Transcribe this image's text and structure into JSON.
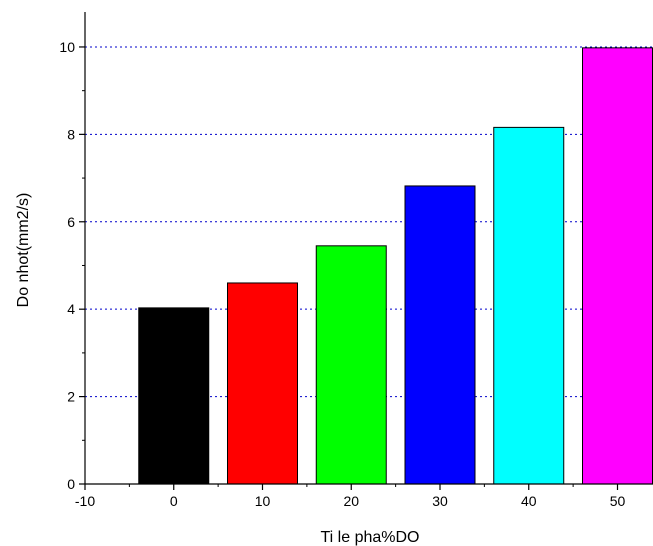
{
  "chart_data": {
    "type": "bar",
    "xlabel": "Ti le pha%DO",
    "ylabel": "Do nhot(mm2/s)",
    "x": [
      0,
      10,
      20,
      30,
      40,
      50
    ],
    "values": [
      4.03,
      4.6,
      5.45,
      6.82,
      8.16,
      9.98
    ],
    "bar_colors": [
      "#000000",
      "#ff0000",
      "#00ff00",
      "#0000ff",
      "#00ffff",
      "#ff00ff"
    ],
    "xlim": [
      -10,
      54
    ],
    "ylim": [
      0,
      10.8
    ],
    "x_ticks": [
      -10,
      0,
      10,
      20,
      30,
      40,
      50
    ],
    "y_ticks": [
      0,
      2,
      4,
      6,
      8,
      10
    ],
    "grid": "horizontal dotted",
    "grid_color": "#0000cc",
    "legend": "none"
  }
}
